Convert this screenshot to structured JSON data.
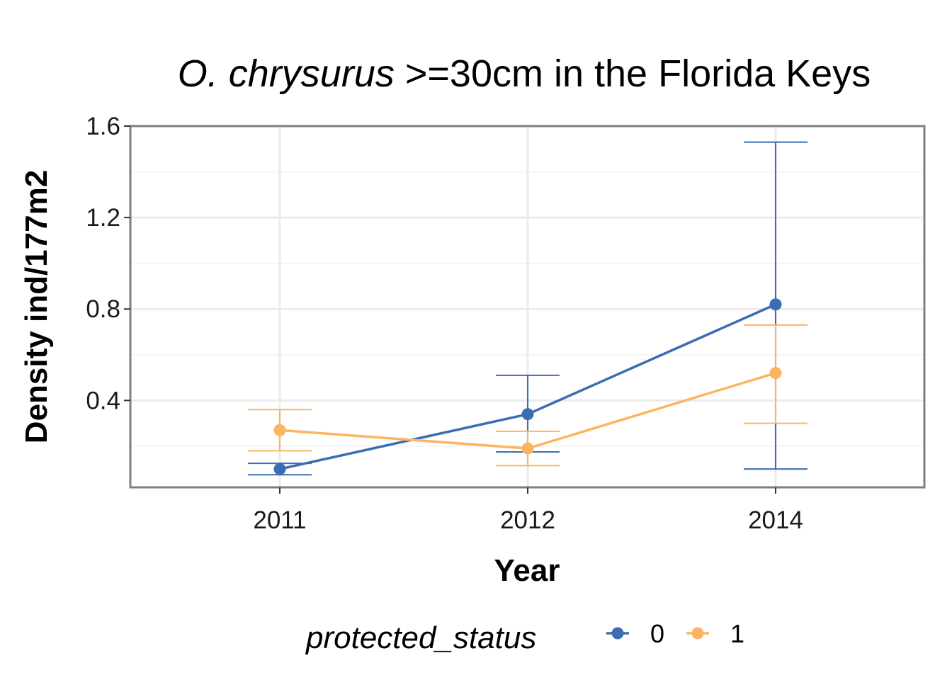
{
  "chart_data": {
    "type": "line",
    "title_italic": "O. chrysurus",
    "title_rest": " >=30cm in the Florida Keys",
    "xlabel": "Year",
    "ylabel": "Density ind/177m2",
    "categories": [
      "2011",
      "2012",
      "2014"
    ],
    "yticks": [
      "0.4",
      "0.8",
      "1.2",
      "1.6"
    ],
    "ylim": [
      0.02,
      1.6
    ],
    "grid": true,
    "legend": {
      "title": "protected_status",
      "placement": "bottom",
      "entries": [
        "0",
        "1"
      ]
    },
    "series": [
      {
        "name": "0",
        "color": "#3b6db3",
        "values": [
          0.1,
          0.34,
          0.82
        ],
        "err_low": [
          0.075,
          0.175,
          0.1
        ],
        "err_high": [
          0.125,
          0.51,
          1.53
        ]
      },
      {
        "name": "1",
        "color": "#fdb462",
        "values": [
          0.27,
          0.19,
          0.52
        ],
        "err_low": [
          0.18,
          0.115,
          0.3
        ],
        "err_high": [
          0.36,
          0.265,
          0.73
        ]
      }
    ]
  }
}
